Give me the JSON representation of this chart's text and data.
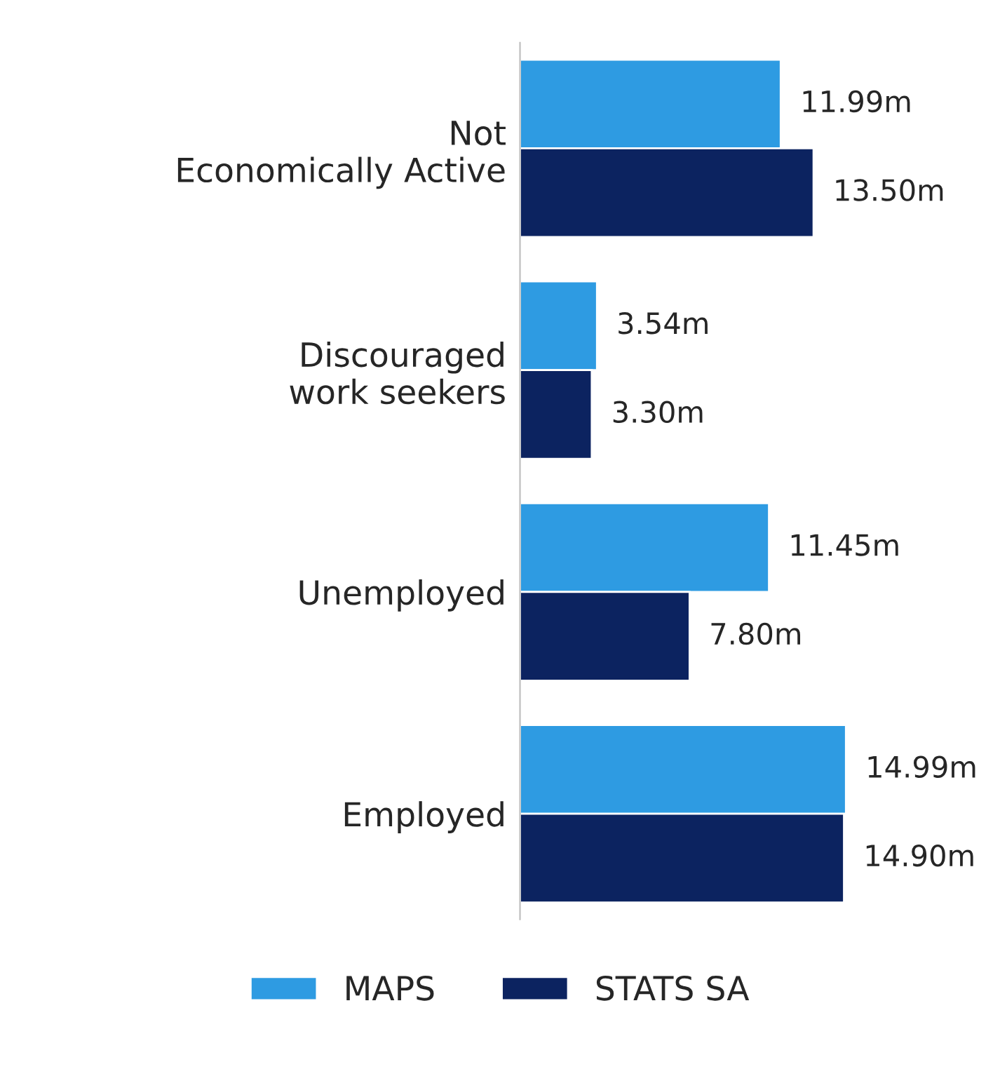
{
  "chart_data": {
    "type": "bar",
    "orientation": "horizontal",
    "categories": [
      "Not Economically Active",
      "Discouraged work seekers",
      "Unemployed",
      "Employed"
    ],
    "series": [
      {
        "name": "MAPS",
        "color": "#2e9be2",
        "values": [
          11.99,
          3.54,
          11.45,
          14.99
        ],
        "value_labels": [
          "11.99m",
          "3.54m",
          "11.45m",
          "14.99m"
        ]
      },
      {
        "name": "STATS SA",
        "color": "#0c2360",
        "values": [
          13.5,
          3.3,
          7.8,
          14.9
        ],
        "value_labels": [
          "13.50m",
          "3.30m",
          "7.80m",
          "14.90m"
        ]
      }
    ],
    "legend": "bottom",
    "grid": false,
    "tick_labels": "y"
  }
}
